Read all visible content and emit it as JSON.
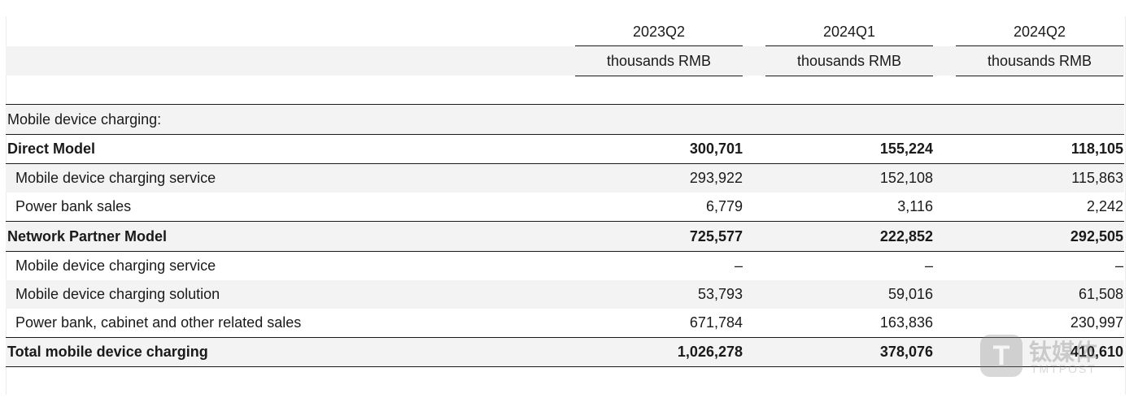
{
  "columns": [
    {
      "period": "2023Q2",
      "unit": "thousands RMB"
    },
    {
      "period": "2024Q1",
      "unit": "thousands RMB"
    },
    {
      "period": "2024Q2",
      "unit": "thousands RMB"
    }
  ],
  "section_title": "Mobile device charging:",
  "rows": [
    {
      "label": "Direct Model",
      "values": [
        "300,701",
        "155,224",
        "118,105"
      ]
    },
    {
      "label": "Mobile device charging service",
      "values": [
        "293,922",
        "152,108",
        "115,863"
      ]
    },
    {
      "label": "Power bank sales",
      "values": [
        "6,779",
        "3,116",
        "2,242"
      ]
    },
    {
      "label": "Network Partner Model",
      "values": [
        "725,577",
        "222,852",
        "292,505"
      ]
    },
    {
      "label": "Mobile device charging service",
      "values": [
        "–",
        "–",
        "–"
      ]
    },
    {
      "label": "Mobile device charging solution",
      "values": [
        "53,793",
        "59,016",
        "61,508"
      ]
    },
    {
      "label": "Power bank, cabinet and other related sales",
      "values": [
        "671,784",
        "163,836",
        "230,997"
      ]
    },
    {
      "label": "Total mobile device charging",
      "values": [
        "1,026,278",
        "378,076",
        "410,610"
      ]
    }
  ],
  "watermark": {
    "logo_letter": "T",
    "cn_text": "钛媒体",
    "en_text": "TMTPOST"
  }
}
